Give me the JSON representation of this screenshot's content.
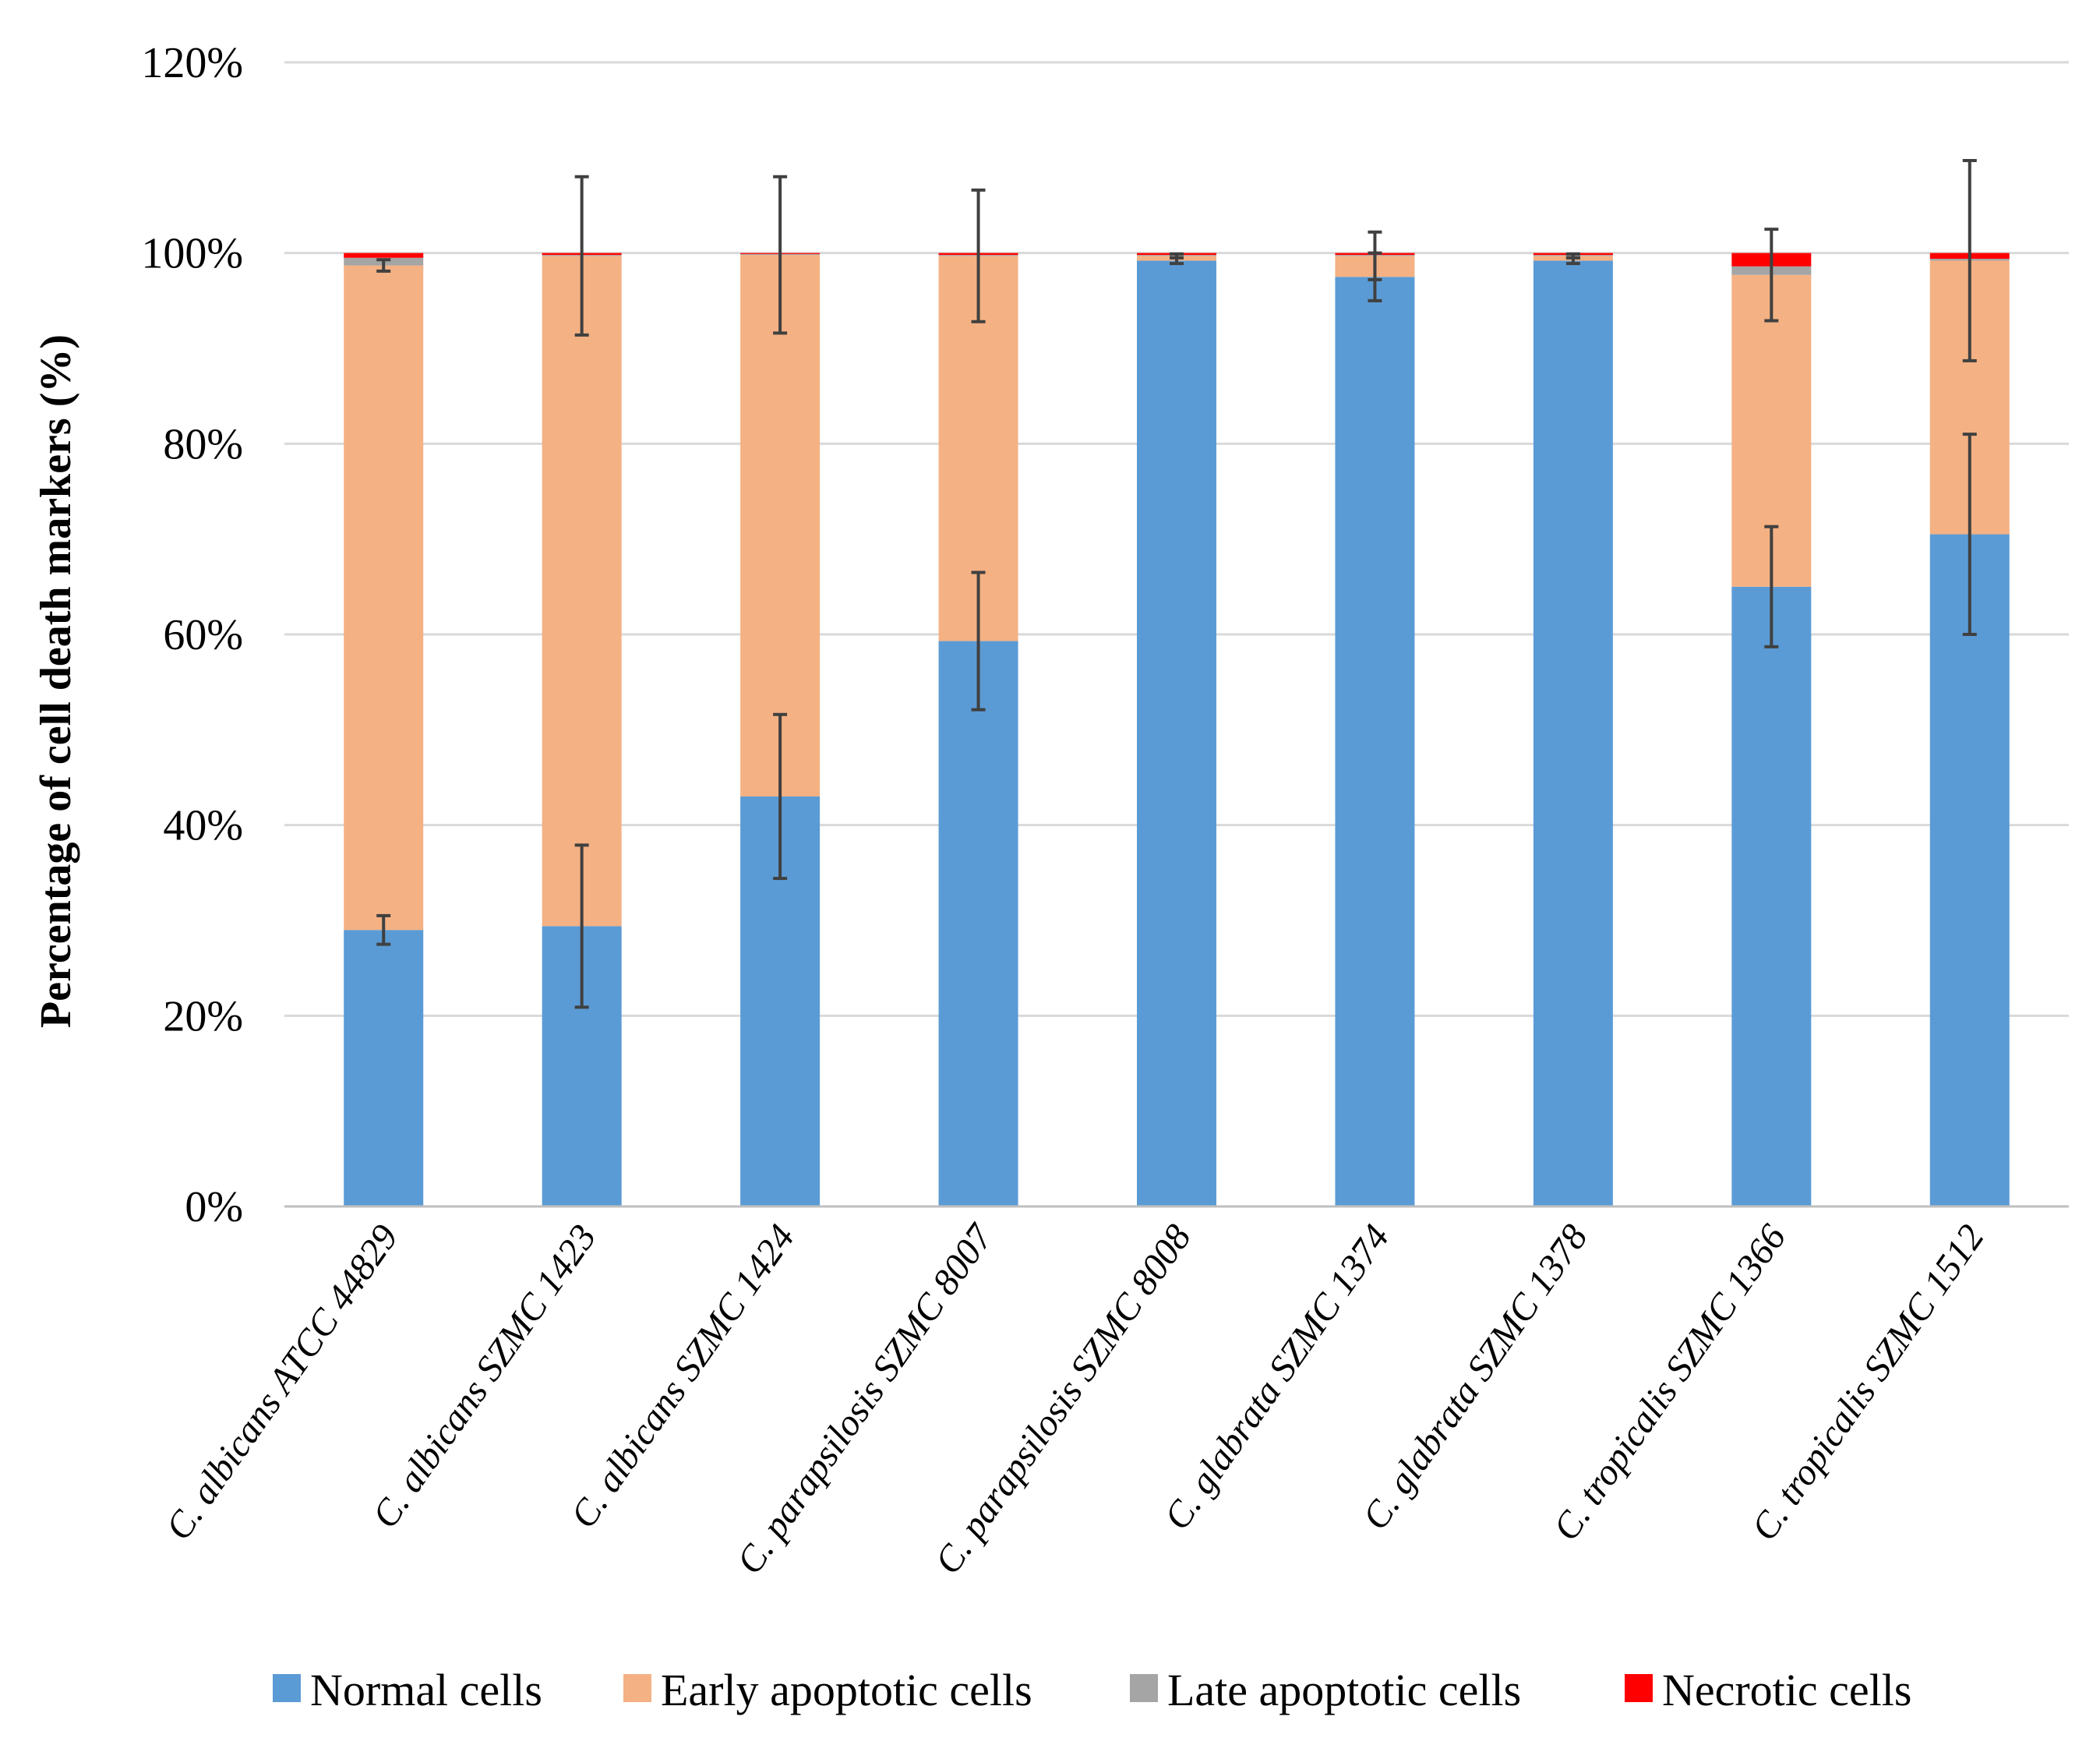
{
  "chart_data": {
    "type": "bar",
    "stacked": true,
    "title": "",
    "xlabel": "",
    "ylabel": "Percentage of cell death markers (%)",
    "ylim": [
      0,
      120
    ],
    "yticks": [
      "0%",
      "20%",
      "40%",
      "60%",
      "80%",
      "100%",
      "120%"
    ],
    "grid": true,
    "legend_position": "bottom",
    "categories": [
      "C. albicans ATCC 44829",
      "C. albicans SZMC 1423",
      "C. albicans SZMC 1424",
      "C. parapsilosis SZMC 8007",
      "C. parapsilosis SZMC 8008",
      "C. glabrata SZMC 1374",
      "C. glabrata SZMC 1378",
      "C. tropicalis SZMC 1366",
      "C. tropicalis SZMC 1512"
    ],
    "series": [
      {
        "name": "Normal cells",
        "color": "#5b9bd5",
        "values": [
          29,
          29.4,
          43,
          59.3,
          99.2,
          97.5,
          99.2,
          65,
          70.5
        ],
        "errors": [
          1.5,
          8.5,
          8.6,
          7.2,
          0.3,
          2.5,
          0.3,
          6.3,
          10.5
        ]
      },
      {
        "name": "Early apoptotic cells",
        "color": "#f4b183",
        "values": [
          69.7,
          70.3,
          56.8,
          40.4,
          0.5,
          2.2,
          0.5,
          32.7,
          28.7
        ],
        "errors": [
          0.6,
          8.3,
          8.2,
          6.9,
          0.2,
          2.5,
          0.2,
          4.8,
          10.5
        ]
      },
      {
        "name": "Late apoptotic cells",
        "color": "#a5a5a5",
        "values": [
          0.8,
          0.1,
          0.1,
          0.1,
          0.1,
          0.1,
          0.1,
          0.9,
          0.2
        ],
        "errors": [
          0.3,
          0.1,
          0.1,
          0.1,
          0.1,
          0.1,
          0.1,
          0.6,
          0.3
        ]
      },
      {
        "name": "Necrotic cells",
        "color": "#ff0000",
        "values": [
          0.5,
          0.2,
          0.1,
          0.2,
          0.2,
          0.2,
          0.2,
          1.4,
          0.6
        ],
        "errors": [
          0.2,
          0.1,
          0.1,
          0.1,
          0.1,
          0.1,
          0.1,
          0.8,
          0.4
        ]
      }
    ]
  }
}
